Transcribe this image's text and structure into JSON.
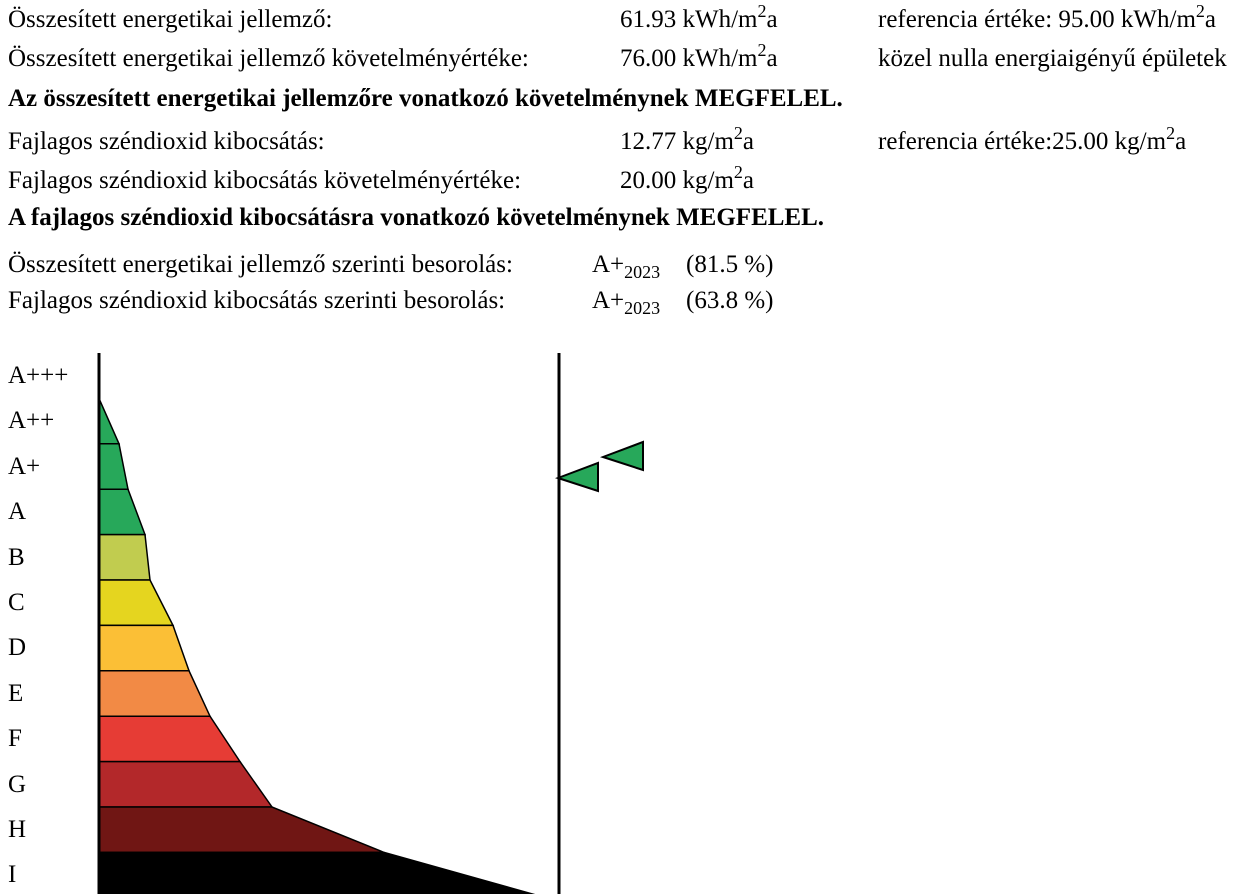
{
  "energy": {
    "label": "Összesített energetikai jellemző:",
    "value_num": "61.93 kWh/m",
    "value_sup": "2",
    "value_unit_tail": "a",
    "ref_text": "referencia értéke: 95.00 kWh/m",
    "ref_sup": "2",
    "ref_tail": "a"
  },
  "energy_req": {
    "label": "Összesített energetikai jellemző követelményértéke:",
    "value_num": "76.00 kWh/m",
    "value_sup": "2",
    "value_unit_tail": "a",
    "note": "közel nulla energiaigényű épületek"
  },
  "energy_verdict": "Az összesített energetikai jellemzőre vonatkozó követelménynek MEGFELEL.",
  "co2": {
    "label": "Fajlagos széndioxid kibocsátás:",
    "value_num": "12.77 kg/m",
    "value_sup": "2",
    "value_unit_tail": "a",
    "ref_text": "referencia értéke:25.00 kg/m",
    "ref_sup": "2",
    "ref_tail": "a"
  },
  "co2_req": {
    "label": "Fajlagos széndioxid kibocsátás követelményértéke:",
    "value_num": "20.00 kg/m",
    "value_sup": "2",
    "value_unit_tail": "a"
  },
  "co2_verdict": "A fajlagos széndioxid kibocsátásra vonatkozó követelménynek MEGFELEL.",
  "rating_energy": {
    "label": "Összesített energetikai jellemző szerinti besorolás:",
    "class": "A+",
    "class_sub": "2023",
    "percent": "(81.5 %)"
  },
  "rating_co2": {
    "label": "Fajlagos széndioxid kibocsátás szerinti besorolás:",
    "class": "A+",
    "class_sub": "2023",
    "percent": "(63.8 %)"
  },
  "scale": {
    "classes": [
      {
        "label": "A+++",
        "color": ""
      },
      {
        "label": "A++",
        "color": "#27a85a"
      },
      {
        "label": "A+",
        "color": "#27a85a"
      },
      {
        "label": "A",
        "color": "#27a85a"
      },
      {
        "label": "B",
        "color": "#c1cc4f"
      },
      {
        "label": "C",
        "color": "#e5d51f"
      },
      {
        "label": "D",
        "color": "#fbbf36"
      },
      {
        "label": "E",
        "color": "#f28a45"
      },
      {
        "label": "F",
        "color": "#e63c35"
      },
      {
        "label": "G",
        "color": "#b3282a"
      },
      {
        "label": "H",
        "color": "#701614"
      },
      {
        "label": "I",
        "color": "#000000"
      }
    ],
    "marker_color": "#27a85a",
    "markers": [
      {
        "name": "energy-rating-marker",
        "class_index": 2,
        "fraction_of_band": 0.25
      },
      {
        "name": "co2-rating-marker",
        "class_index": 2,
        "fraction_of_band": -0.25
      }
    ]
  }
}
